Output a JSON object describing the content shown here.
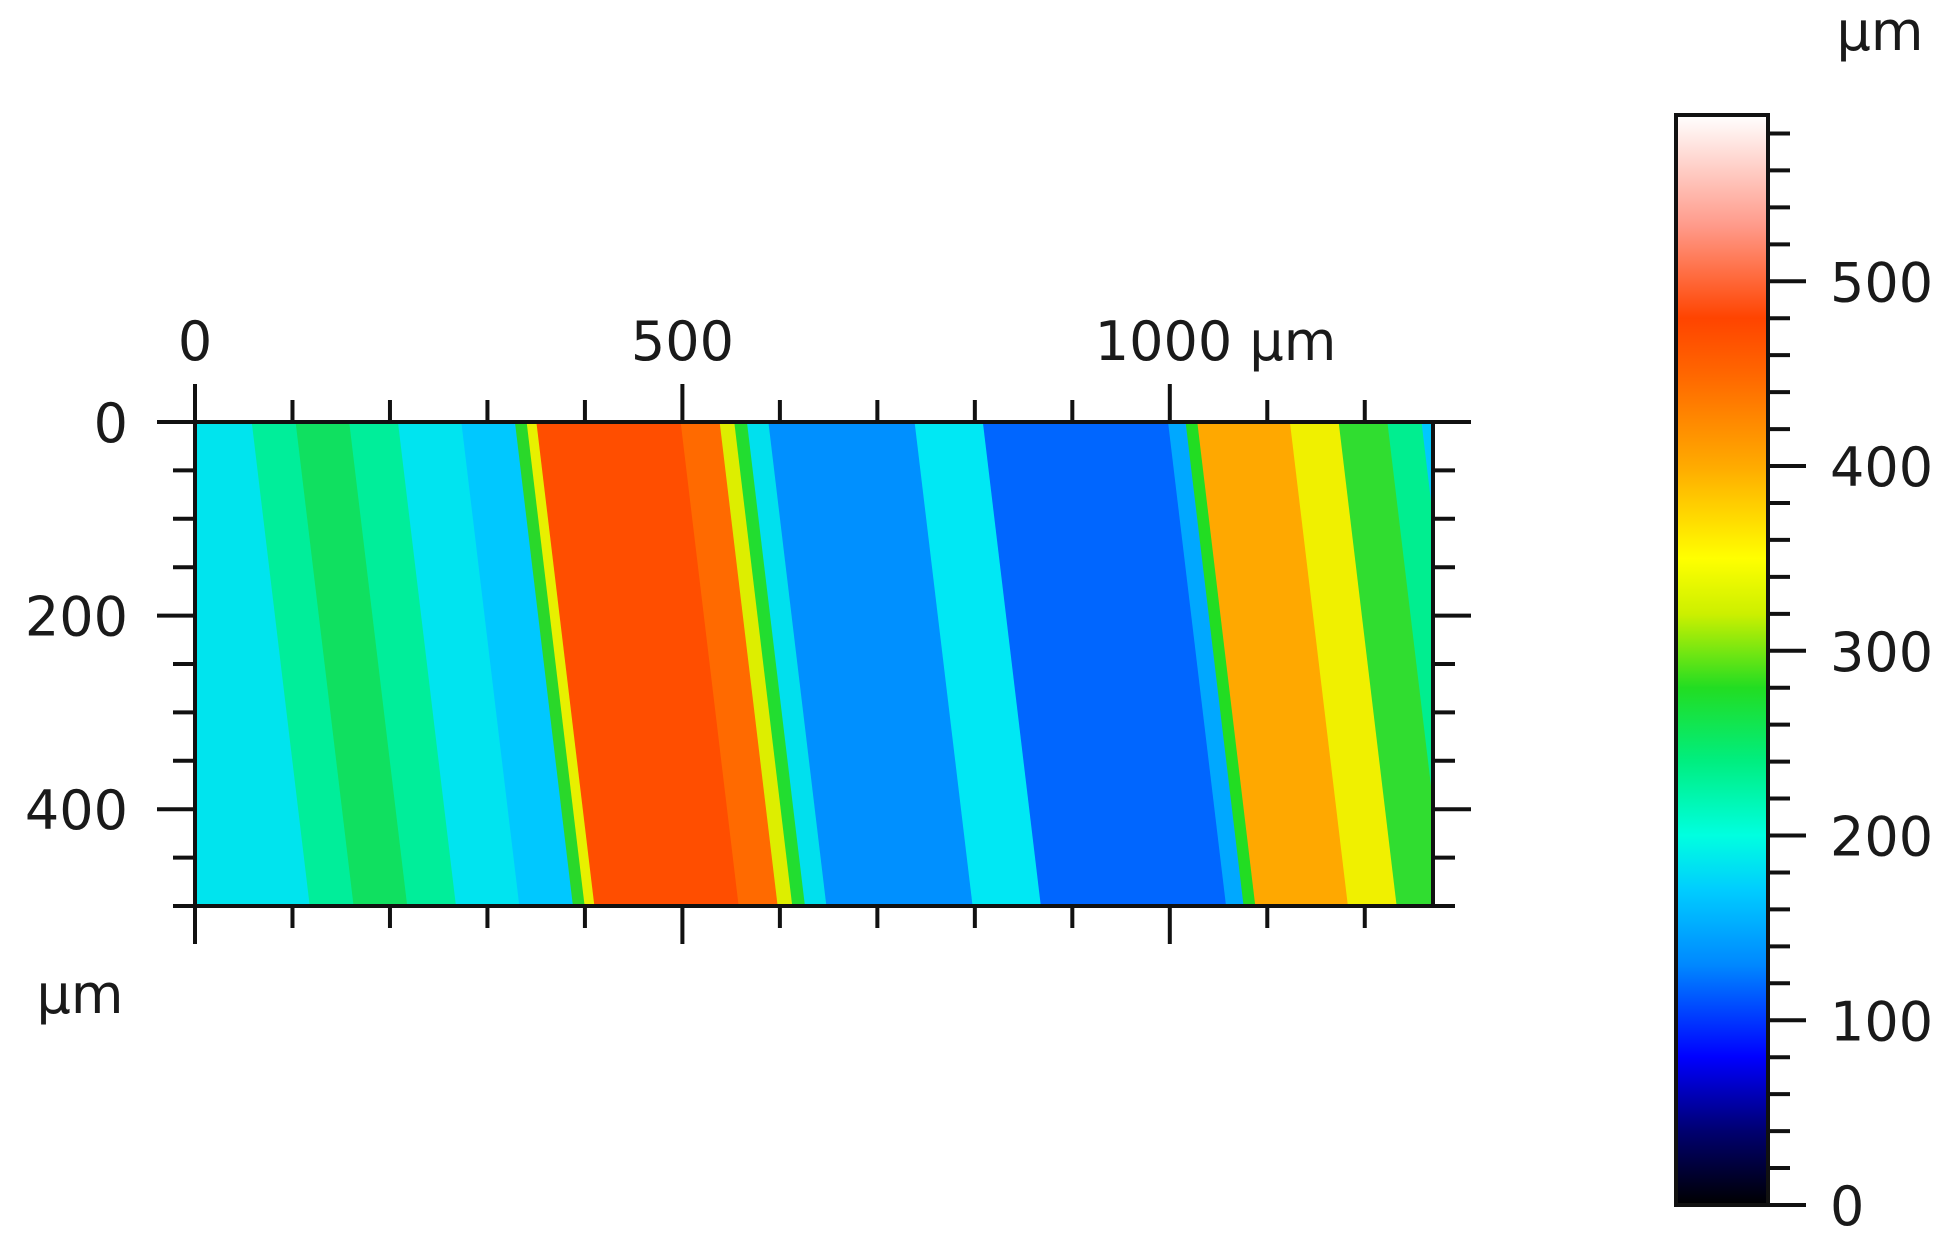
{
  "chart_data": {
    "type": "heatmap",
    "title": "",
    "x_axis": {
      "range": [
        0,
        1270
      ],
      "tick_labels": [
        "0",
        "500",
        "1000 µm"
      ],
      "tick_values": [
        0,
        500,
        1000
      ],
      "minor_step": 100,
      "position": "top"
    },
    "y_axis": {
      "range": [
        0,
        500
      ],
      "tick_labels": [
        "0",
        "200",
        "400"
      ],
      "tick_values": [
        0,
        200,
        400
      ],
      "minor_step": 50,
      "unit": "µm",
      "inverted": true
    },
    "colorbar": {
      "unit": "µm",
      "range": [
        0,
        590
      ],
      "tick_labels": [
        "0",
        "100",
        "200",
        "300",
        "400",
        "500"
      ],
      "tick_values": [
        0,
        100,
        200,
        300,
        400,
        500
      ],
      "minor_step": 20,
      "stops": [
        {
          "value": 0,
          "color": "#000000"
        },
        {
          "value": 40,
          "color": "#000070"
        },
        {
          "value": 80,
          "color": "#0000ff"
        },
        {
          "value": 130,
          "color": "#0088ff"
        },
        {
          "value": 170,
          "color": "#00ccff"
        },
        {
          "value": 200,
          "color": "#00ffe0"
        },
        {
          "value": 240,
          "color": "#00ee80"
        },
        {
          "value": 280,
          "color": "#22dd22"
        },
        {
          "value": 320,
          "color": "#ccf000"
        },
        {
          "value": 350,
          "color": "#ffff00"
        },
        {
          "value": 400,
          "color": "#ffaa00"
        },
        {
          "value": 450,
          "color": "#ff6600"
        },
        {
          "value": 480,
          "color": "#ff4400"
        },
        {
          "value": 530,
          "color": "#ff9a8a"
        },
        {
          "value": 590,
          "color": "#ffffff"
        }
      ]
    },
    "bands": [
      {
        "x_start": 0,
        "x_end": 60,
        "height": 185,
        "color": "#00e4ee"
      },
      {
        "x_start": 60,
        "x_end": 105,
        "height": 215,
        "color": "#00ee9a"
      },
      {
        "x_start": 105,
        "x_end": 160,
        "height": 235,
        "color": "#10e060"
      },
      {
        "x_start": 160,
        "x_end": 210,
        "height": 210,
        "color": "#00ee9a"
      },
      {
        "x_start": 210,
        "x_end": 275,
        "height": 185,
        "color": "#00e4f0"
      },
      {
        "x_start": 275,
        "x_end": 330,
        "height": 165,
        "color": "#00c8ff"
      },
      {
        "x_start": 330,
        "x_end": 342,
        "height": 280,
        "color": "#2ad82a"
      },
      {
        "x_start": 342,
        "x_end": 352,
        "height": 350,
        "color": "#e8f000"
      },
      {
        "x_start": 352,
        "x_end": 500,
        "height": 470,
        "color": "#ff4e00"
      },
      {
        "x_start": 500,
        "x_end": 540,
        "height": 455,
        "color": "#ff6a00"
      },
      {
        "x_start": 540,
        "x_end": 555,
        "height": 340,
        "color": "#ddee00"
      },
      {
        "x_start": 555,
        "x_end": 568,
        "height": 270,
        "color": "#22dd30"
      },
      {
        "x_start": 568,
        "x_end": 590,
        "height": 185,
        "color": "#00e0ee"
      },
      {
        "x_start": 590,
        "x_end": 740,
        "height": 135,
        "color": "#0090ff"
      },
      {
        "x_start": 740,
        "x_end": 810,
        "height": 180,
        "color": "#00e8f4"
      },
      {
        "x_start": 810,
        "x_end": 1000,
        "height": 115,
        "color": "#0066ff"
      },
      {
        "x_start": 1000,
        "x_end": 1018,
        "height": 140,
        "color": "#00a8ff"
      },
      {
        "x_start": 1018,
        "x_end": 1030,
        "height": 280,
        "color": "#22dd22"
      },
      {
        "x_start": 1030,
        "x_end": 1125,
        "height": 400,
        "color": "#ffa800"
      },
      {
        "x_start": 1125,
        "x_end": 1175,
        "height": 350,
        "color": "#f0f000"
      },
      {
        "x_start": 1175,
        "x_end": 1225,
        "height": 270,
        "color": "#30dd30"
      },
      {
        "x_start": 1225,
        "x_end": 1260,
        "height": 200,
        "color": "#00ee90"
      },
      {
        "x_start": 1260,
        "x_end": 1270,
        "height": 175,
        "color": "#00c8ff"
      }
    ],
    "band_tilt_x_per_500y": 60
  }
}
